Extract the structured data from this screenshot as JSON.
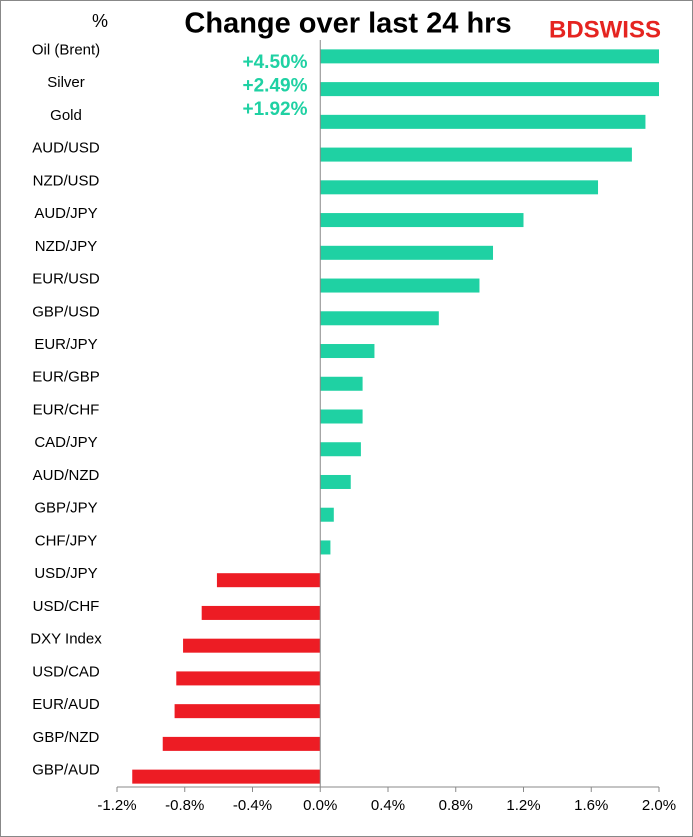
{
  "chart_data": {
    "type": "hbar",
    "title": "Change over last 24 hrs",
    "unit_label": "%",
    "brand": "BDSWISS",
    "categories": [
      "Oil (Brent)",
      "Silver",
      "Gold",
      "AUD/USD",
      "NZD/USD",
      "AUD/JPY",
      "NZD/JPY",
      "EUR/USD",
      "GBP/USD",
      "EUR/JPY",
      "EUR/GBP",
      "EUR/CHF",
      "CAD/JPY",
      "AUD/NZD",
      "GBP/JPY",
      "CHF/JPY",
      "USD/JPY",
      "USD/CHF",
      "DXY Index",
      "USD/CAD",
      "EUR/AUD",
      "GBP/NZD",
      "GBP/AUD"
    ],
    "values": [
      4.5,
      2.49,
      1.92,
      1.84,
      1.64,
      1.2,
      1.02,
      0.94,
      0.7,
      0.32,
      0.25,
      0.25,
      0.24,
      0.18,
      0.08,
      0.06,
      -0.61,
      -0.7,
      -0.81,
      -0.85,
      -0.86,
      -0.93,
      -1.11
    ],
    "value_labels": [
      "+4.50%",
      "+2.49%",
      "+1.92%",
      null,
      null,
      null,
      null,
      null,
      null,
      null,
      null,
      null,
      null,
      null,
      null,
      null,
      null,
      null,
      null,
      null,
      null,
      null,
      null
    ],
    "positive_color": "#1fd1a3",
    "negative_color": "#ed1c24",
    "xlim": [
      -1.2,
      2.0
    ],
    "xticks": [
      {
        "value": -1.2,
        "label": "-1.2%"
      },
      {
        "value": -0.8,
        "label": "-0.8%"
      },
      {
        "value": -0.4,
        "label": "-0.4%"
      },
      {
        "value": 0,
        "label": "0.0%"
      },
      {
        "value": 0.4,
        "label": "0.4%"
      },
      {
        "value": 0.8,
        "label": "0.8%"
      },
      {
        "value": 1.2,
        "label": "1.2%"
      },
      {
        "value": 1.6,
        "label": "1.6%"
      },
      {
        "value": 2.0,
        "label": "2.0%"
      }
    ]
  }
}
